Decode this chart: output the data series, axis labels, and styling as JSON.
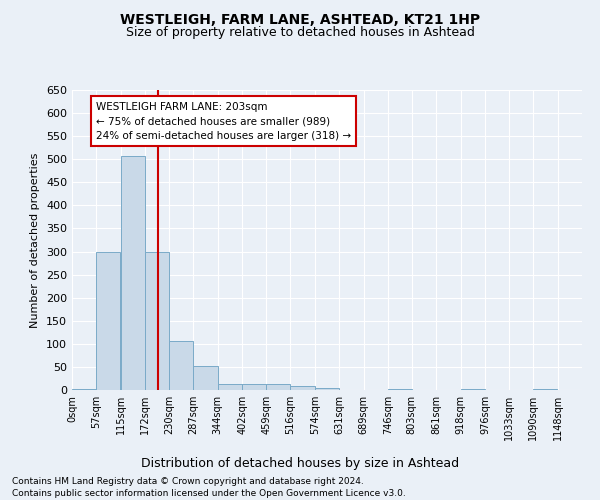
{
  "title": "WESTLEIGH, FARM LANE, ASHTEAD, KT21 1HP",
  "subtitle": "Size of property relative to detached houses in Ashtead",
  "xlabel": "Distribution of detached houses by size in Ashtead",
  "ylabel": "Number of detached properties",
  "footnote1": "Contains HM Land Registry data © Crown copyright and database right 2024.",
  "footnote2": "Contains public sector information licensed under the Open Government Licence v3.0.",
  "bin_labels": [
    "0sqm",
    "57sqm",
    "115sqm",
    "172sqm",
    "230sqm",
    "287sqm",
    "344sqm",
    "402sqm",
    "459sqm",
    "516sqm",
    "574sqm",
    "631sqm",
    "689sqm",
    "746sqm",
    "803sqm",
    "861sqm",
    "918sqm",
    "976sqm",
    "1033sqm",
    "1090sqm",
    "1148sqm"
  ],
  "bar_values": [
    3,
    298,
    507,
    300,
    106,
    53,
    13,
    13,
    12,
    8,
    5,
    1,
    0,
    3,
    0,
    0,
    2,
    0,
    0,
    3
  ],
  "bar_color": "#c9d9e8",
  "bar_edgecolor": "#7aaac8",
  "vline_x": 203,
  "vline_color": "#cc0000",
  "annotation_line1": "WESTLEIGH FARM LANE: 203sqm",
  "annotation_line2": "← 75% of detached houses are smaller (989)",
  "annotation_line3": "24% of semi-detached houses are larger (318) →",
  "annotation_box_color": "#ffffff",
  "annotation_box_edgecolor": "#cc0000",
  "ylim": [
    0,
    650
  ],
  "background_color": "#eaf0f7",
  "plot_background": "#eaf0f7",
  "grid_color": "#ffffff",
  "title_fontsize": 10,
  "subtitle_fontsize": 9,
  "bin_width": 57,
  "bin_starts": [
    0,
    57,
    115,
    172,
    230,
    287,
    344,
    402,
    459,
    516,
    574,
    631,
    689,
    746,
    803,
    861,
    918,
    976,
    1033,
    1090
  ]
}
